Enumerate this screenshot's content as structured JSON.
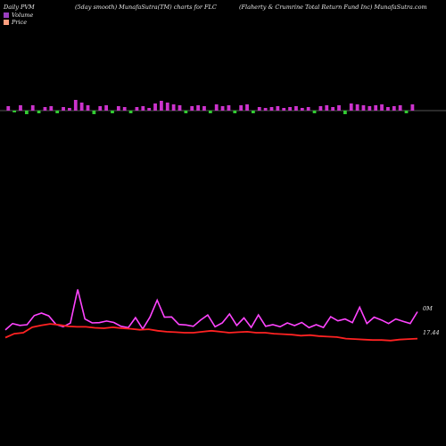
{
  "header": {
    "left": "Daily PVM",
    "middle": "(5day smooth) MunafaSutra(TM) charts for FLC",
    "right": "(Flaherty & Crumrine   Total Return  Fund Inc) MunafaSutra.com"
  },
  "legend": {
    "volume_label": "Volume",
    "price_label": "Price",
    "volume_swatch": "#9b3fc0",
    "price_swatch": "#ff9f7f"
  },
  "colors": {
    "volume_up": "#cc33cc",
    "volume_down": "#33cc33",
    "volume_smooth": "#ff44ff",
    "price_line": "#ff2222",
    "axis": "#aaaaaa"
  },
  "chart_data": {
    "type": "bar",
    "volume_bars": {
      "series": [
        {
          "name": "Volume",
          "values": [
            5,
            -2,
            6,
            -4,
            6,
            -3,
            4,
            5,
            -3,
            4,
            3,
            12,
            9,
            6,
            -4,
            5,
            6,
            -3,
            5,
            4,
            -3,
            4,
            5,
            3,
            8,
            11,
            9,
            7,
            6,
            -3,
            5,
            6,
            5,
            -3,
            7,
            5,
            6,
            -3,
            6,
            7,
            -3,
            4,
            3,
            4,
            5,
            3,
            4,
            5,
            3,
            4,
            -3,
            5,
            6,
            4,
            6,
            -4,
            8,
            7,
            6,
            5,
            6,
            7,
            4,
            5,
            6,
            -3,
            7
          ]
        }
      ]
    },
    "price_panel": {
      "labels": {
        "volume_axis": "0M",
        "price_axis": "17.44"
      },
      "volume_smooth": [
        3.2,
        6.0,
        5.2,
        5.5,
        9.5,
        10.6,
        9.4,
        5.6,
        4.6,
        6.2,
        21.0,
        8.0,
        6.3,
        6.4,
        7.1,
        6.5,
        4.8,
        4.2,
        8.6,
        3.6,
        8.8,
        16.3,
        8.8,
        8.9,
        5.6,
        5.4,
        4.8,
        7.5,
        9.8,
        4.6,
        6.3,
        10.2,
        5.2,
        8.5,
        4.3,
        9.8,
        4.8,
        5.5,
        4.6,
        6.3,
        5.1,
        6.5,
        4.2,
        5.5,
        4.3,
        9.0,
        7.2,
        8.0,
        6.4,
        13.2,
        6.0,
        8.8,
        7.6,
        6.0,
        8.0,
        7.0,
        6.0,
        11.2
      ],
      "price": [
        17.5,
        17.58,
        17.6,
        17.71,
        17.75,
        17.78,
        17.76,
        17.73,
        17.72,
        17.72,
        17.7,
        17.69,
        17.71,
        17.69,
        17.68,
        17.66,
        17.67,
        17.64,
        17.62,
        17.61,
        17.6,
        17.6,
        17.62,
        17.64,
        17.62,
        17.6,
        17.61,
        17.62,
        17.6,
        17.6,
        17.58,
        17.57,
        17.56,
        17.54,
        17.55,
        17.53,
        17.52,
        17.51,
        17.48,
        17.47,
        17.46,
        17.45,
        17.45,
        17.44,
        17.46,
        17.47,
        17.48
      ]
    }
  }
}
